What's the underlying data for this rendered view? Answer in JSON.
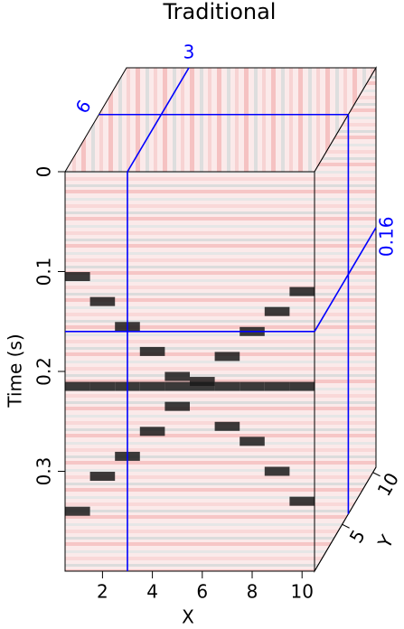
{
  "chart_data": {
    "type": "cube",
    "title": "Traditional",
    "y_label": "Time (s)",
    "x_label": "X",
    "depth_label": "Y",
    "ylim": [
      0,
      0.4
    ],
    "yticks": [
      0,
      0.1,
      0.2,
      0.3
    ],
    "xlim": [
      0.5,
      10.5
    ],
    "xticks": [
      2,
      4,
      6,
      8,
      10
    ],
    "depthlim": [
      0.5,
      10.5
    ],
    "depthticks": [
      5,
      10
    ],
    "slice_x": 3,
    "slice_depth": 6,
    "slice_time": 0.16,
    "slice_color": "#0000ff",
    "event_color": "#1a1a1a",
    "traces": [
      {
        "x": 1,
        "times": [
          0.105,
          0.215,
          0.34
        ]
      },
      {
        "x": 2,
        "times": [
          0.13,
          0.215,
          0.305
        ]
      },
      {
        "x": 3,
        "times": [
          0.155,
          0.215,
          0.285
        ]
      },
      {
        "x": 4,
        "times": [
          0.18,
          0.215,
          0.26
        ]
      },
      {
        "x": 5,
        "times": [
          0.205,
          0.215,
          0.235
        ]
      },
      {
        "x": 6,
        "times": [
          0.21,
          0.215
        ]
      },
      {
        "x": 7,
        "times": [
          0.185,
          0.215,
          0.255
        ]
      },
      {
        "x": 8,
        "times": [
          0.16,
          0.215,
          0.27
        ]
      },
      {
        "x": 9,
        "times": [
          0.14,
          0.215,
          0.3
        ]
      },
      {
        "x": 10,
        "times": [
          0.12,
          0.215,
          0.33
        ]
      }
    ]
  }
}
